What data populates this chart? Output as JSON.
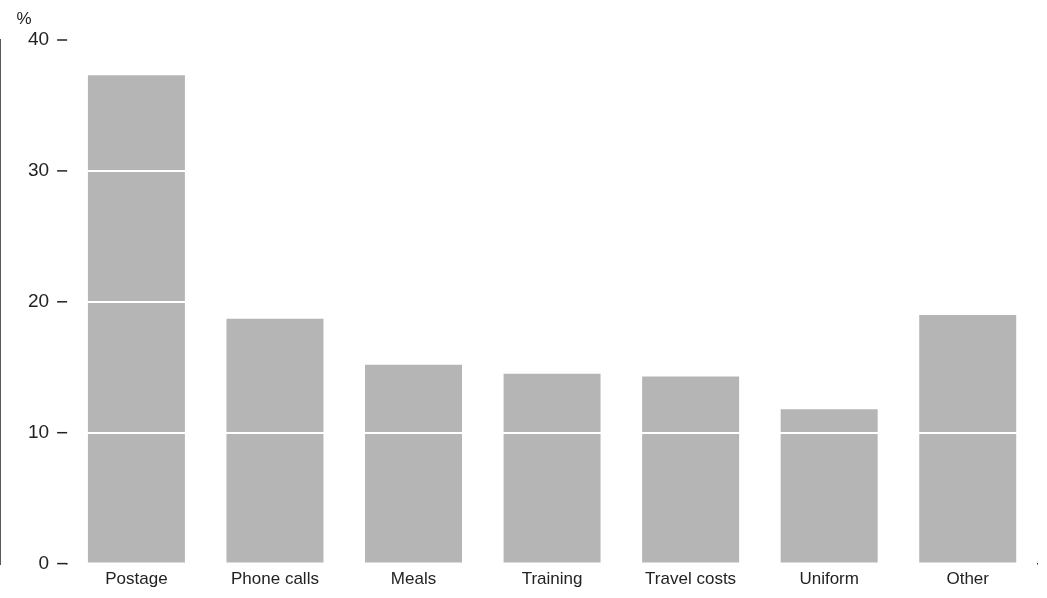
{
  "chart_data": {
    "type": "bar",
    "ylabel": "%",
    "categories": [
      "Postage",
      "Phone calls",
      "Meals",
      "Training",
      "Travel costs",
      "Uniform",
      "Other"
    ],
    "values": [
      37.3,
      18.7,
      15.2,
      14.5,
      14.3,
      11.8,
      19.0
    ],
    "color": "#b5b5b5",
    "ylim": [
      0,
      40
    ],
    "yticks": [
      0,
      10,
      20,
      30,
      40
    ],
    "grid": "y"
  }
}
